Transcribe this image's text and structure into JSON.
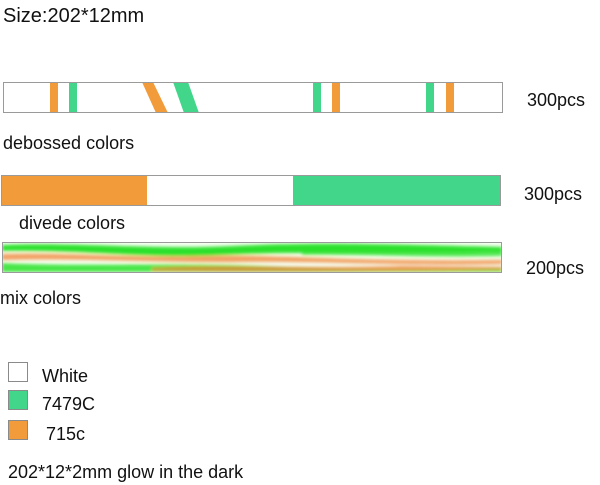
{
  "title": "Size:202*12mm",
  "colors": {
    "white": "#ffffff",
    "green": "#41d68a",
    "orange": "#f29b3b",
    "mix_green": "#22e022",
    "mix_orange": "#f07a2a"
  },
  "rows": [
    {
      "label": "debossed colors",
      "quantity": "300pcs"
    },
    {
      "label": "divede colors",
      "quantity": "300pcs"
    },
    {
      "label": "mix colors",
      "quantity": "200pcs"
    }
  ],
  "legend": [
    {
      "label": "White",
      "color": "#ffffff"
    },
    {
      "label": "7479C",
      "color": "#41d68a"
    },
    {
      "label": "715c",
      "color": "#f29b3b"
    }
  ],
  "footer": "202*12*2mm  glow in the dark"
}
